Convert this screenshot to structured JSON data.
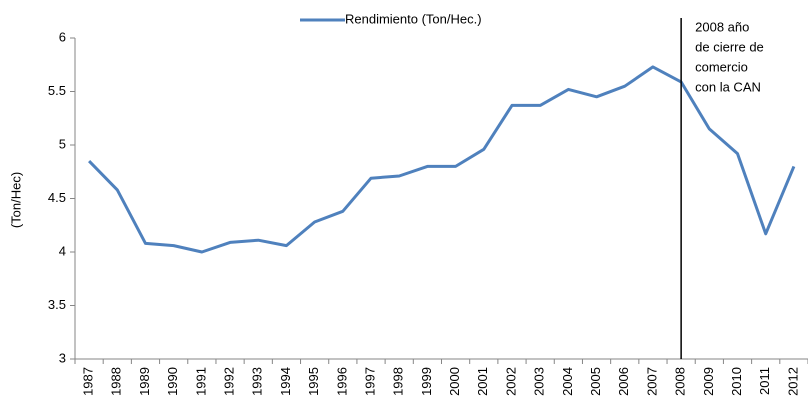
{
  "chart_data": {
    "type": "line",
    "y_label": "(Ton/Hec)",
    "categories": [
      "1987",
      "1988",
      "1989",
      "1990",
      "1991",
      "1992",
      "1993",
      "1994",
      "1995",
      "1996",
      "1997",
      "1998",
      "1999",
      "2000",
      "2001",
      "2002",
      "2003",
      "2004",
      "2005",
      "2006",
      "2007",
      "2008",
      "2009",
      "2010",
      "2011",
      "2012"
    ],
    "series": [
      {
        "name": "Rendimiento (Ton/Hec.)",
        "color": "#4f81bd",
        "values": [
          4.85,
          4.58,
          4.08,
          4.06,
          4.0,
          4.09,
          4.11,
          4.06,
          4.28,
          4.38,
          4.69,
          4.71,
          4.8,
          4.8,
          4.96,
          5.37,
          5.37,
          5.52,
          5.45,
          5.55,
          5.73,
          5.59,
          5.15,
          4.92,
          4.17,
          4.8
        ]
      }
    ],
    "ylim": [
      3,
      6
    ],
    "yticks": [
      3,
      3.5,
      4,
      4.5,
      5,
      5.5,
      6
    ],
    "grid": false,
    "marker_category": "2008",
    "annotation": [
      "2008 año",
      "de cierre de",
      "comercio",
      "con la CAN"
    ]
  }
}
